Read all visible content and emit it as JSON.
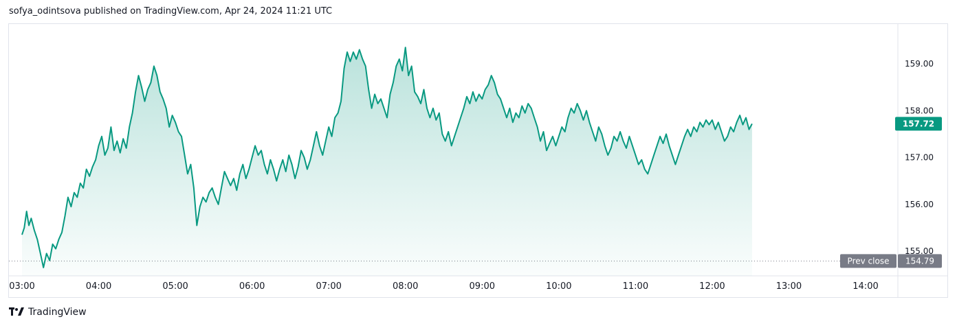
{
  "header": {
    "publisher_text": "sofya_odintsova published on TradingView.com, Apr 24, 2024 11:21 UTC"
  },
  "footer": {
    "brand": "TradingView"
  },
  "colors": {
    "line": "#089981",
    "fill": "#089981",
    "prev_close_badge": "#787b86",
    "last_badge": "#089981"
  },
  "chart_data": {
    "type": "area",
    "x_ticks": [
      "03:00",
      "04:00",
      "05:00",
      "06:00",
      "07:00",
      "08:00",
      "09:00",
      "10:00",
      "11:00",
      "12:00",
      "13:00",
      "14:00"
    ],
    "y_ticks": [
      "155.00",
      "156.00",
      "157.00",
      "158.00",
      "159.00"
    ],
    "ylim": [
      154.55,
      159.82
    ],
    "xlim": [
      3.0,
      14.4
    ],
    "prev_close": {
      "label": "Prev close",
      "value": "154.79"
    },
    "last_price": "157.72",
    "series": [
      {
        "values": [
          [
            3.0,
            155.35
          ],
          [
            3.03,
            155.5
          ],
          [
            3.06,
            155.85
          ],
          [
            3.09,
            155.55
          ],
          [
            3.12,
            155.7
          ],
          [
            3.16,
            155.45
          ],
          [
            3.2,
            155.25
          ],
          [
            3.24,
            154.95
          ],
          [
            3.28,
            154.65
          ],
          [
            3.32,
            154.95
          ],
          [
            3.36,
            154.8
          ],
          [
            3.4,
            155.15
          ],
          [
            3.44,
            155.05
          ],
          [
            3.48,
            155.25
          ],
          [
            3.52,
            155.4
          ],
          [
            3.56,
            155.75
          ],
          [
            3.6,
            156.15
          ],
          [
            3.64,
            155.95
          ],
          [
            3.68,
            156.25
          ],
          [
            3.72,
            156.15
          ],
          [
            3.76,
            156.45
          ],
          [
            3.8,
            156.35
          ],
          [
            3.84,
            156.75
          ],
          [
            3.88,
            156.6
          ],
          [
            3.92,
            156.8
          ],
          [
            3.96,
            156.95
          ],
          [
            4.0,
            157.25
          ],
          [
            4.04,
            157.45
          ],
          [
            4.08,
            157.05
          ],
          [
            4.12,
            157.2
          ],
          [
            4.16,
            157.65
          ],
          [
            4.2,
            157.15
          ],
          [
            4.24,
            157.35
          ],
          [
            4.28,
            157.1
          ],
          [
            4.32,
            157.4
          ],
          [
            4.36,
            157.2
          ],
          [
            4.4,
            157.65
          ],
          [
            4.44,
            157.95
          ],
          [
            4.48,
            158.4
          ],
          [
            4.52,
            158.75
          ],
          [
            4.56,
            158.5
          ],
          [
            4.6,
            158.2
          ],
          [
            4.64,
            158.45
          ],
          [
            4.68,
            158.6
          ],
          [
            4.72,
            158.95
          ],
          [
            4.76,
            158.75
          ],
          [
            4.8,
            158.4
          ],
          [
            4.84,
            158.25
          ],
          [
            4.88,
            158.05
          ],
          [
            4.92,
            157.65
          ],
          [
            4.96,
            157.9
          ],
          [
            5.0,
            157.75
          ],
          [
            5.04,
            157.55
          ],
          [
            5.08,
            157.45
          ],
          [
            5.12,
            157.05
          ],
          [
            5.16,
            156.65
          ],
          [
            5.2,
            156.85
          ],
          [
            5.24,
            156.35
          ],
          [
            5.28,
            155.55
          ],
          [
            5.32,
            155.95
          ],
          [
            5.36,
            156.15
          ],
          [
            5.4,
            156.05
          ],
          [
            5.44,
            156.25
          ],
          [
            5.48,
            156.35
          ],
          [
            5.52,
            156.15
          ],
          [
            5.56,
            156.0
          ],
          [
            5.6,
            156.35
          ],
          [
            5.64,
            156.7
          ],
          [
            5.68,
            156.55
          ],
          [
            5.72,
            156.4
          ],
          [
            5.76,
            156.55
          ],
          [
            5.8,
            156.3
          ],
          [
            5.84,
            156.65
          ],
          [
            5.88,
            156.85
          ],
          [
            5.92,
            156.55
          ],
          [
            5.96,
            156.75
          ],
          [
            6.0,
            157.0
          ],
          [
            6.04,
            157.25
          ],
          [
            6.08,
            157.05
          ],
          [
            6.12,
            157.15
          ],
          [
            6.16,
            156.85
          ],
          [
            6.2,
            156.65
          ],
          [
            6.24,
            156.95
          ],
          [
            6.28,
            156.75
          ],
          [
            6.32,
            156.5
          ],
          [
            6.36,
            156.75
          ],
          [
            6.4,
            156.95
          ],
          [
            6.44,
            156.7
          ],
          [
            6.48,
            157.05
          ],
          [
            6.52,
            156.85
          ],
          [
            6.56,
            156.55
          ],
          [
            6.6,
            156.8
          ],
          [
            6.64,
            157.15
          ],
          [
            6.68,
            157.0
          ],
          [
            6.72,
            156.75
          ],
          [
            6.76,
            156.95
          ],
          [
            6.8,
            157.25
          ],
          [
            6.84,
            157.55
          ],
          [
            6.88,
            157.25
          ],
          [
            6.92,
            157.05
          ],
          [
            6.96,
            157.35
          ],
          [
            7.0,
            157.65
          ],
          [
            7.04,
            157.45
          ],
          [
            7.08,
            157.85
          ],
          [
            7.12,
            157.95
          ],
          [
            7.16,
            158.2
          ],
          [
            7.2,
            158.9
          ],
          [
            7.24,
            159.25
          ],
          [
            7.28,
            159.05
          ],
          [
            7.32,
            159.25
          ],
          [
            7.36,
            159.1
          ],
          [
            7.4,
            159.3
          ],
          [
            7.44,
            159.1
          ],
          [
            7.48,
            158.95
          ],
          [
            7.52,
            158.45
          ],
          [
            7.56,
            158.05
          ],
          [
            7.6,
            158.35
          ],
          [
            7.64,
            158.15
          ],
          [
            7.68,
            158.25
          ],
          [
            7.72,
            158.05
          ],
          [
            7.76,
            157.85
          ],
          [
            7.8,
            158.35
          ],
          [
            7.84,
            158.6
          ],
          [
            7.88,
            158.95
          ],
          [
            7.92,
            159.1
          ],
          [
            7.96,
            158.85
          ],
          [
            8.0,
            159.35
          ],
          [
            8.04,
            158.75
          ],
          [
            8.08,
            158.95
          ],
          [
            8.12,
            158.4
          ],
          [
            8.16,
            158.3
          ],
          [
            8.2,
            158.15
          ],
          [
            8.24,
            158.45
          ],
          [
            8.28,
            158.05
          ],
          [
            8.32,
            157.85
          ],
          [
            8.36,
            158.05
          ],
          [
            8.4,
            157.8
          ],
          [
            8.44,
            157.95
          ],
          [
            8.48,
            157.5
          ],
          [
            8.52,
            157.35
          ],
          [
            8.56,
            157.55
          ],
          [
            8.6,
            157.25
          ],
          [
            8.64,
            157.45
          ],
          [
            8.68,
            157.65
          ],
          [
            8.72,
            157.85
          ],
          [
            8.76,
            158.05
          ],
          [
            8.8,
            158.3
          ],
          [
            8.84,
            158.15
          ],
          [
            8.88,
            158.4
          ],
          [
            8.92,
            158.2
          ],
          [
            8.96,
            158.35
          ],
          [
            9.0,
            158.25
          ],
          [
            9.04,
            158.45
          ],
          [
            9.08,
            158.55
          ],
          [
            9.12,
            158.75
          ],
          [
            9.16,
            158.6
          ],
          [
            9.2,
            158.35
          ],
          [
            9.24,
            158.25
          ],
          [
            9.28,
            158.05
          ],
          [
            9.32,
            157.85
          ],
          [
            9.36,
            158.05
          ],
          [
            9.4,
            157.75
          ],
          [
            9.44,
            157.95
          ],
          [
            9.48,
            157.85
          ],
          [
            9.52,
            158.1
          ],
          [
            9.56,
            157.95
          ],
          [
            9.6,
            158.15
          ],
          [
            9.64,
            158.05
          ],
          [
            9.68,
            157.85
          ],
          [
            9.72,
            157.65
          ],
          [
            9.76,
            157.35
          ],
          [
            9.8,
            157.55
          ],
          [
            9.84,
            157.15
          ],
          [
            9.88,
            157.3
          ],
          [
            9.92,
            157.45
          ],
          [
            9.96,
            157.25
          ],
          [
            10.0,
            157.45
          ],
          [
            10.04,
            157.65
          ],
          [
            10.08,
            157.55
          ],
          [
            10.12,
            157.85
          ],
          [
            10.16,
            158.05
          ],
          [
            10.2,
            157.95
          ],
          [
            10.24,
            158.15
          ],
          [
            10.28,
            158.0
          ],
          [
            10.32,
            157.8
          ],
          [
            10.36,
            158.0
          ],
          [
            10.4,
            157.75
          ],
          [
            10.44,
            157.55
          ],
          [
            10.48,
            157.35
          ],
          [
            10.52,
            157.65
          ],
          [
            10.56,
            157.5
          ],
          [
            10.6,
            157.25
          ],
          [
            10.64,
            157.05
          ],
          [
            10.68,
            157.2
          ],
          [
            10.72,
            157.45
          ],
          [
            10.76,
            157.35
          ],
          [
            10.8,
            157.55
          ],
          [
            10.84,
            157.35
          ],
          [
            10.88,
            157.2
          ],
          [
            10.92,
            157.45
          ],
          [
            10.96,
            157.25
          ],
          [
            11.0,
            157.05
          ],
          [
            11.04,
            156.85
          ],
          [
            11.08,
            156.95
          ],
          [
            11.12,
            156.75
          ],
          [
            11.16,
            156.65
          ],
          [
            11.2,
            156.85
          ],
          [
            11.24,
            157.05
          ],
          [
            11.28,
            157.25
          ],
          [
            11.32,
            157.45
          ],
          [
            11.36,
            157.3
          ],
          [
            11.4,
            157.5
          ],
          [
            11.44,
            157.25
          ],
          [
            11.48,
            157.05
          ],
          [
            11.52,
            156.85
          ],
          [
            11.56,
            157.05
          ],
          [
            11.6,
            157.25
          ],
          [
            11.64,
            157.45
          ],
          [
            11.68,
            157.6
          ],
          [
            11.72,
            157.45
          ],
          [
            11.76,
            157.65
          ],
          [
            11.8,
            157.55
          ],
          [
            11.84,
            157.75
          ],
          [
            11.88,
            157.65
          ],
          [
            11.92,
            157.8
          ],
          [
            11.96,
            157.7
          ],
          [
            12.0,
            157.8
          ],
          [
            12.04,
            157.6
          ],
          [
            12.08,
            157.75
          ],
          [
            12.12,
            157.55
          ],
          [
            12.16,
            157.35
          ],
          [
            12.2,
            157.45
          ],
          [
            12.24,
            157.65
          ],
          [
            12.28,
            157.55
          ],
          [
            12.32,
            157.75
          ],
          [
            12.36,
            157.9
          ],
          [
            12.4,
            157.7
          ],
          [
            12.44,
            157.85
          ],
          [
            12.48,
            157.6
          ],
          [
            12.52,
            157.72
          ]
        ]
      }
    ]
  }
}
